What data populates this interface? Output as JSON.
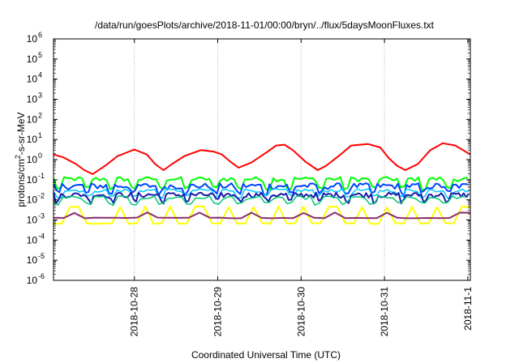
{
  "chart_data": {
    "type": "line",
    "title": "/data/run/goesPlots/archive/2018-11-01/00:00/bryn/../flux/5daysMoonFluxes.txt",
    "xlabel": "Coordinated Universal Time (UTC)",
    "ylabel_base": "protons/cm",
    "ylabel_sup": "2",
    "ylabel_rest": "-s-sr-MeV",
    "y_scale": "log",
    "ylim_exp": [
      -6,
      6
    ],
    "y_ticks": [
      {
        "exp": "-6",
        "label": "10"
      },
      {
        "exp": "-5",
        "label": "10"
      },
      {
        "exp": "-4",
        "label": "10"
      },
      {
        "exp": "-3",
        "label": "10"
      },
      {
        "exp": "-2",
        "label": "10"
      },
      {
        "exp": "-1",
        "label": "10"
      },
      {
        "exp": "0",
        "label": "10"
      },
      {
        "exp": "1",
        "label": "10"
      },
      {
        "exp": "2",
        "label": "10"
      },
      {
        "exp": "3",
        "label": "10"
      },
      {
        "exp": "4",
        "label": "10"
      },
      {
        "exp": "5",
        "label": "10"
      },
      {
        "exp": "6",
        "label": "10"
      }
    ],
    "xlim_days": [
      -3.97,
      1.03
    ],
    "x_ticks": [
      {
        "day": -3,
        "label": "2018-10-28"
      },
      {
        "day": -2,
        "label": "2018-10-29"
      },
      {
        "day": -1,
        "label": "2018-10-30"
      },
      {
        "day": 0,
        "label": "2018-10-31"
      },
      {
        "day": 1,
        "label": "2018-11-1"
      }
    ],
    "grid": true,
    "series": [
      {
        "color": "#ff0000",
        "width": 2,
        "x": [
          -3.97,
          -3.85,
          -3.7,
          -3.6,
          -3.5,
          -3.35,
          -3.2,
          -3.0,
          -2.85,
          -2.75,
          -2.65,
          -2.55,
          -2.4,
          -2.2,
          -2.05,
          -1.95,
          -1.85,
          -1.75,
          -1.6,
          -1.4,
          -1.3,
          -1.2,
          -1.1,
          -0.95,
          -0.8,
          -0.7,
          -0.55,
          -0.4,
          -0.2,
          -0.05,
          0.05,
          0.15,
          0.25,
          0.4,
          0.55,
          0.7,
          0.85,
          1.03
        ],
        "y": [
          1.8,
          1.3,
          0.6,
          0.3,
          0.19,
          0.5,
          1.5,
          3.2,
          1.8,
          0.6,
          0.3,
          0.6,
          1.5,
          3.0,
          2.5,
          1.8,
          0.8,
          0.4,
          0.7,
          2.5,
          5.0,
          5.5,
          3.0,
          0.8,
          0.3,
          0.5,
          1.5,
          5.0,
          6.0,
          4.0,
          1.2,
          0.5,
          0.3,
          0.6,
          3.0,
          6.5,
          5.0,
          1.8
        ]
      },
      {
        "color": "#00ff00",
        "width": 2,
        "period": 0.085,
        "base": 0.11,
        "amp": 0.25,
        "dip": 0.35
      },
      {
        "color": "#0044ff",
        "width": 2,
        "period": 0.07,
        "base": 0.05,
        "amp": 0.35,
        "dip": 0.45
      },
      {
        "color": "#00c8ff",
        "width": 1.5,
        "period": 0.09,
        "base": 0.03,
        "amp": 0.2,
        "dip": 0.5
      },
      {
        "color": "#1a1aaa",
        "width": 2,
        "period": 0.06,
        "base": 0.018,
        "amp": 0.3,
        "dip": 0.5
      },
      {
        "color": "#00c87a",
        "width": 1.5,
        "period": 0.11,
        "base": 0.013,
        "amp": 0.2,
        "dip": 0.5
      },
      {
        "color": "#ffff00",
        "width": 2,
        "period": 0.2,
        "base": 0.0045,
        "amp": 0.06,
        "dip": 0.15
      },
      {
        "color": "#8b2d6b",
        "width": 2,
        "period": 0.25,
        "base": 0.0023,
        "amp": 0.04,
        "dip": 0.55
      }
    ],
    "dips": [
      -3.92,
      -3.55,
      -3.28,
      -3.0,
      -2.68,
      -2.37,
      -2.02,
      -1.73,
      -1.42,
      -1.13,
      -0.78,
      -0.45,
      -0.12,
      0.2,
      0.47,
      0.76
    ]
  }
}
